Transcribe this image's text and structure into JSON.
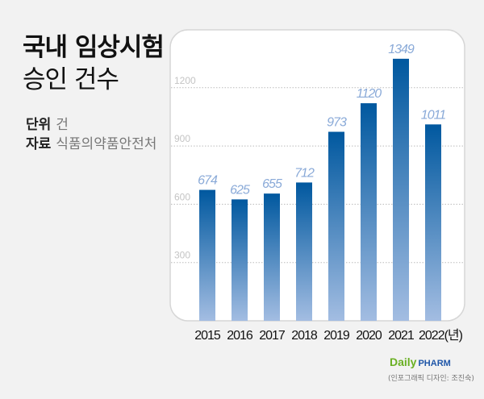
{
  "header": {
    "title": "국내 임상시험",
    "subtitle": "승인 건수",
    "unit_label": "단위",
    "unit_value": "건",
    "source_label": "자료",
    "source_value": "식품의약품안전처"
  },
  "footer": {
    "logo_text": "Daily PHARM",
    "logo_colors": {
      "daily": "#6ab023",
      "pharm": "#1f56a8"
    },
    "credit": "(인포그래픽 디자인: 조진숙)"
  },
  "chart_data": {
    "type": "bar",
    "categories": [
      "2015",
      "2016",
      "2017",
      "2018",
      "2019",
      "2020",
      "2021",
      "2022(년)"
    ],
    "values": [
      674,
      625,
      655,
      712,
      973,
      1120,
      1349,
      1011
    ],
    "data_labels": [
      "674",
      "625",
      "655",
      "712",
      "973",
      "1120",
      "1349",
      "1011"
    ],
    "yticks": [
      "300",
      "600",
      "900",
      "1200"
    ],
    "ytick_values": [
      300,
      600,
      900,
      1200
    ],
    "ylim": [
      0,
      1400
    ],
    "grid": true,
    "grid_style": "dotted",
    "bar_color_top": "#00589f",
    "bar_color_bottom": "#a3bde2",
    "label_color": "#8aaad8"
  }
}
